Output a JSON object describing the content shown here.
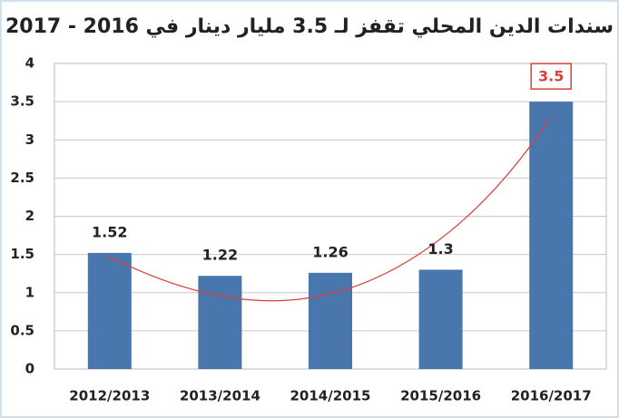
{
  "chart_data": {
    "type": "bar",
    "title": "سندات الدين المحلي تقفز لـ 3.5 مليار دينار في 2016 - 2017",
    "categories": [
      "2012/2013",
      "2013/2014",
      "2014/2015",
      "2015/2016",
      "2016/2017"
    ],
    "values": [
      1.52,
      1.22,
      1.26,
      1.3,
      3.5
    ],
    "color": "#4a76ae",
    "ylim": [
      0,
      4
    ],
    "yticks": [
      0,
      0.5,
      1,
      1.5,
      2,
      2.5,
      3,
      3.5,
      4
    ],
    "grid": true
  }
}
